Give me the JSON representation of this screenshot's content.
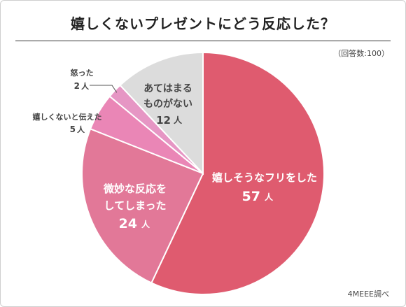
{
  "title": "嬉しくないプレゼントにどう反応した？",
  "note": "（回答数:100）",
  "source": "4MEEE調べ",
  "colors": {
    "slices": [
      "#df5b6f",
      "#e27898",
      "#ea86b6",
      "#e696c4",
      "#dcdcdc"
    ],
    "text_inside_dark": "#ffffff",
    "text_inside_light": "#444444",
    "text_outside": "#444444"
  },
  "chart_data": {
    "type": "pie",
    "title": "嬉しくないプレゼントにどう反応した？",
    "unit": "人",
    "slices": [
      {
        "label": "嬉しそうなフリをした",
        "value": 57
      },
      {
        "label": "微妙な反応をしてしまった",
        "value": 24
      },
      {
        "label": "嬉しくないと伝えた",
        "value": 5
      },
      {
        "label": "怒った",
        "value": 2
      },
      {
        "label": "あてはまるものがない",
        "value": 12
      }
    ]
  },
  "labels": {
    "slice0": {
      "line1": "嬉しそうなフリをした",
      "num": "57",
      "unit": "人"
    },
    "slice1": {
      "line1": "微妙な反応を",
      "line2": "してしまった",
      "num": "24",
      "unit": "人"
    },
    "slice2": {
      "line1": "嬉しくないと伝えた",
      "num": "5",
      "unit": "人"
    },
    "slice3": {
      "line1": "怒った",
      "num": "2",
      "unit": "人"
    },
    "slice4": {
      "line1": "あてはまる",
      "line2": "ものがない",
      "num": "12",
      "unit": "人"
    }
  }
}
